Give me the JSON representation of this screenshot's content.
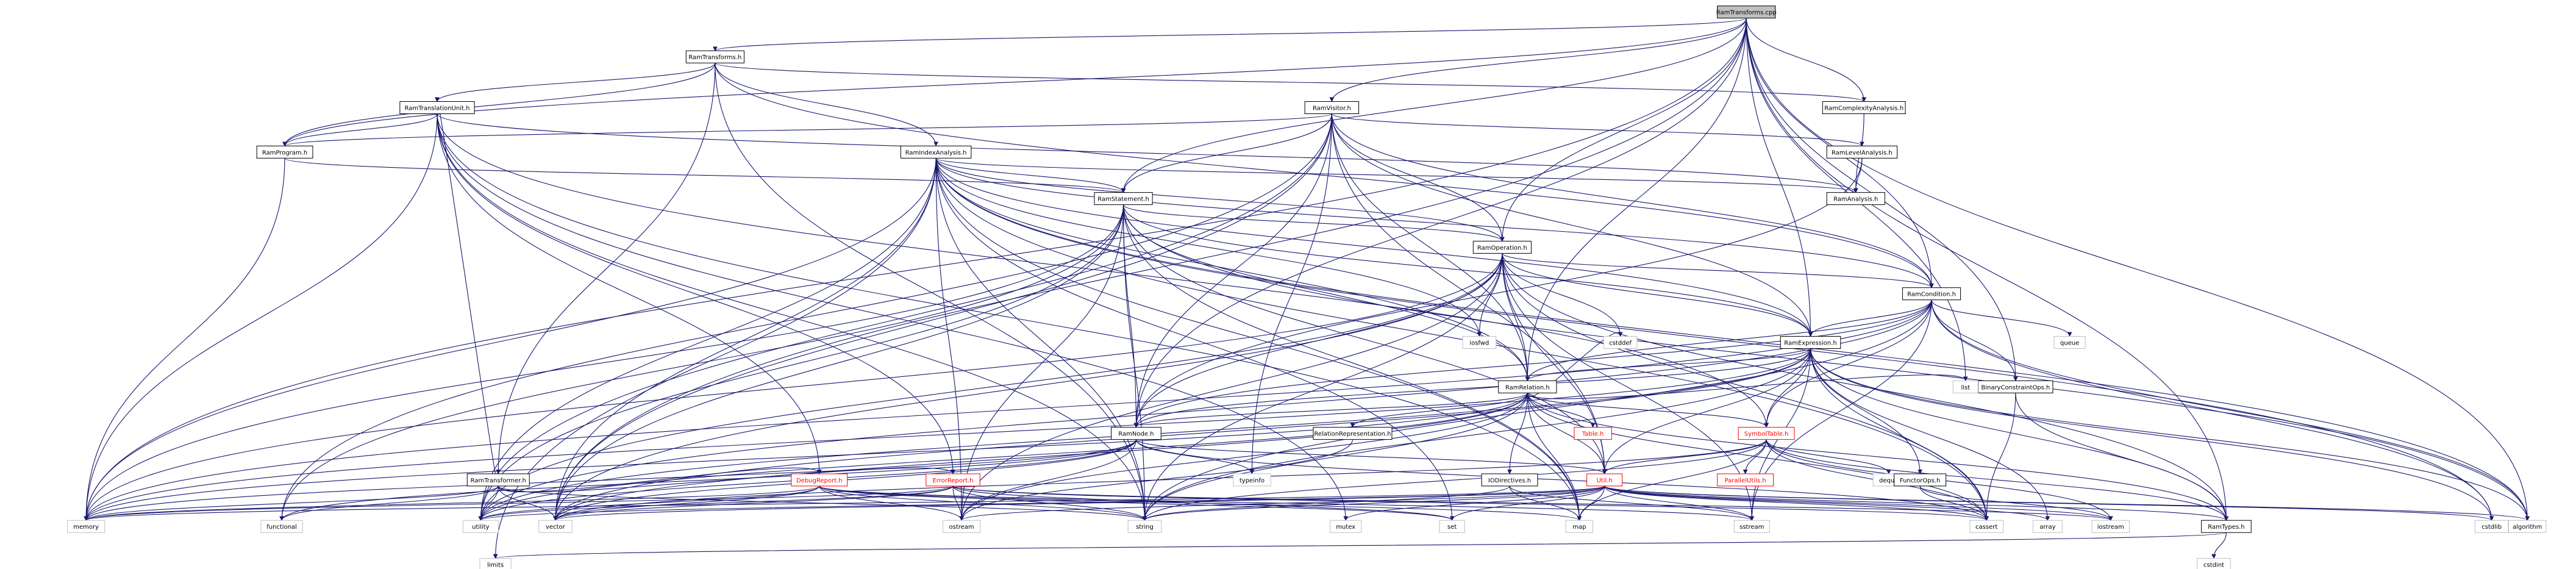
{
  "root": "RamTransforms.cpp",
  "nodes": [
    {
      "id": "RamTransforms.cpp",
      "label": "RamTransforms.cpp",
      "kind": "root"
    },
    {
      "id": "RamTransforms.h",
      "label": "RamTransforms.h",
      "kind": "file"
    },
    {
      "id": "RamVisitor.h",
      "label": "RamVisitor.h",
      "kind": "file"
    },
    {
      "id": "RamComplexityAnalysis.h",
      "label": "RamComplexityAnalysis.h",
      "kind": "file"
    },
    {
      "id": "RamTranslationUnit.h",
      "label": "RamTranslationUnit.h",
      "kind": "file"
    },
    {
      "id": "RamIndexAnalysis.h",
      "label": "RamIndexAnalysis.h",
      "kind": "file"
    },
    {
      "id": "RamLevelAnalysis.h",
      "label": "RamLevelAnalysis.h",
      "kind": "file"
    },
    {
      "id": "RamProgram.h",
      "label": "RamProgram.h",
      "kind": "file"
    },
    {
      "id": "RamStatement.h",
      "label": "RamStatement.h",
      "kind": "file"
    },
    {
      "id": "RamAnalysis.h",
      "label": "RamAnalysis.h",
      "kind": "file"
    },
    {
      "id": "RamOperation.h",
      "label": "RamOperation.h",
      "kind": "file"
    },
    {
      "id": "RamCondition.h",
      "label": "RamCondition.h",
      "kind": "file"
    },
    {
      "id": "RamExpression.h",
      "label": "RamExpression.h",
      "kind": "file"
    },
    {
      "id": "iosfwd",
      "label": "iosfwd",
      "kind": "system"
    },
    {
      "id": "cstddef",
      "label": "cstddef",
      "kind": "system"
    },
    {
      "id": "queue",
      "label": "queue",
      "kind": "system"
    },
    {
      "id": "BinaryConstraintOps.h",
      "label": "BinaryConstraintOps.h",
      "kind": "file"
    },
    {
      "id": "RamRelation.h",
      "label": "RamRelation.h",
      "kind": "file"
    },
    {
      "id": "list",
      "label": "list",
      "kind": "system"
    },
    {
      "id": "RamNode.h",
      "label": "RamNode.h",
      "kind": "file"
    },
    {
      "id": "RelationRepresentation.h",
      "label": "RelationRepresentation.h",
      "kind": "file"
    },
    {
      "id": "Table.h",
      "label": "Table.h",
      "kind": "truncated"
    },
    {
      "id": "SymbolTable.h",
      "label": "SymbolTable.h",
      "kind": "truncated"
    },
    {
      "id": "ParallelUtils.h",
      "label": "ParallelUtils.h",
      "kind": "truncated"
    },
    {
      "id": "deque",
      "label": "deque",
      "kind": "system"
    },
    {
      "id": "FunctorOps.h",
      "label": "FunctorOps.h",
      "kind": "file"
    },
    {
      "id": "RamTransformer.h",
      "label": "RamTransformer.h",
      "kind": "file"
    },
    {
      "id": "DebugReport.h",
      "label": "DebugReport.h",
      "kind": "truncated"
    },
    {
      "id": "ErrorReport.h",
      "label": "ErrorReport.h",
      "kind": "truncated"
    },
    {
      "id": "IODirectives.h",
      "label": "IODirectives.h",
      "kind": "file"
    },
    {
      "id": "typeinfo",
      "label": "typeinfo",
      "kind": "system"
    },
    {
      "id": "Util.h",
      "label": "Util.h",
      "kind": "truncated"
    },
    {
      "id": "RamTypes.h",
      "label": "RamTypes.h",
      "kind": "file"
    },
    {
      "id": "memory",
      "label": "memory",
      "kind": "system"
    },
    {
      "id": "functional",
      "label": "functional",
      "kind": "system"
    },
    {
      "id": "utility",
      "label": "utility",
      "kind": "system"
    },
    {
      "id": "vector",
      "label": "vector",
      "kind": "system"
    },
    {
      "id": "ostream",
      "label": "ostream",
      "kind": "system"
    },
    {
      "id": "string",
      "label": "string",
      "kind": "system"
    },
    {
      "id": "set",
      "label": "set",
      "kind": "system"
    },
    {
      "id": "mutex",
      "label": "mutex",
      "kind": "system"
    },
    {
      "id": "map",
      "label": "map",
      "kind": "system"
    },
    {
      "id": "sstream",
      "label": "sstream",
      "kind": "system"
    },
    {
      "id": "cassert",
      "label": "cassert",
      "kind": "system"
    },
    {
      "id": "array",
      "label": "array",
      "kind": "system"
    },
    {
      "id": "iostream",
      "label": "iostream",
      "kind": "system"
    },
    {
      "id": "cstdlib",
      "label": "cstdlib",
      "kind": "system"
    },
    {
      "id": "algorithm",
      "label": "algorithm",
      "kind": "system"
    },
    {
      "id": "limits",
      "label": "limits",
      "kind": "system"
    },
    {
      "id": "cstdint",
      "label": "cstdint",
      "kind": "system"
    }
  ],
  "edges": [
    [
      "RamTransforms.cpp",
      "RamTransforms.h"
    ],
    [
      "RamTransforms.cpp",
      "RamVisitor.h"
    ],
    [
      "RamTransforms.cpp",
      "RamComplexityAnalysis.h"
    ],
    [
      "RamTransforms.cpp",
      "RamProgram.h"
    ],
    [
      "RamTransforms.cpp",
      "RamStatement.h"
    ],
    [
      "RamTransforms.cpp",
      "RamOperation.h"
    ],
    [
      "RamTransforms.cpp",
      "RamCondition.h"
    ],
    [
      "RamTransforms.cpp",
      "RamExpression.h"
    ],
    [
      "RamTransforms.cpp",
      "RamRelation.h"
    ],
    [
      "RamTransforms.cpp",
      "RamNode.h"
    ],
    [
      "RamTransforms.cpp",
      "BinaryConstraintOps.h"
    ],
    [
      "RamTransforms.cpp",
      "list"
    ],
    [
      "RamTransforms.cpp",
      "RamTypes.h"
    ],
    [
      "RamTransforms.cpp",
      "algorithm"
    ],
    [
      "RamTransforms.cpp",
      "memory"
    ],
    [
      "RamTransforms.cpp",
      "vector"
    ],
    [
      "RamTransforms.h",
      "RamTranslationUnit.h"
    ],
    [
      "RamTransforms.h",
      "RamIndexAnalysis.h"
    ],
    [
      "RamTransforms.h",
      "RamComplexityAnalysis.h"
    ],
    [
      "RamTransforms.h",
      "RamTransformer.h"
    ],
    [
      "RamTransforms.h",
      "RamCondition.h"
    ],
    [
      "RamTransforms.h",
      "RamProgram.h"
    ],
    [
      "RamTransforms.h",
      "string"
    ],
    [
      "RamTranslationUnit.h",
      "RamProgram.h"
    ],
    [
      "RamTranslationUnit.h",
      "RamAnalysis.h"
    ],
    [
      "RamTranslationUnit.h",
      "DebugReport.h"
    ],
    [
      "RamTranslationUnit.h",
      "ErrorReport.h"
    ],
    [
      "RamTranslationUnit.h",
      "SymbolTable.h"
    ],
    [
      "RamTranslationUnit.h",
      "map"
    ],
    [
      "RamTranslationUnit.h",
      "memory"
    ],
    [
      "RamTranslationUnit.h",
      "string"
    ],
    [
      "RamTranslationUnit.h",
      "mutex"
    ],
    [
      "RamVisitor.h",
      "RamProgram.h"
    ],
    [
      "RamVisitor.h",
      "RamStatement.h"
    ],
    [
      "RamVisitor.h",
      "RamOperation.h"
    ],
    [
      "RamVisitor.h",
      "RamCondition.h"
    ],
    [
      "RamVisitor.h",
      "RamExpression.h"
    ],
    [
      "RamVisitor.h",
      "RamRelation.h"
    ],
    [
      "RamVisitor.h",
      "RamNode.h"
    ],
    [
      "RamVisitor.h",
      "RamLevelAnalysis.h"
    ],
    [
      "RamVisitor.h",
      "functional"
    ],
    [
      "RamVisitor.h",
      "typeinfo"
    ],
    [
      "RamVisitor.h",
      "utility"
    ],
    [
      "RamVisitor.h",
      "vector"
    ],
    [
      "RamVisitor.h",
      "Util.h"
    ],
    [
      "RamComplexityAnalysis.h",
      "RamAnalysis.h"
    ],
    [
      "RamLevelAnalysis.h",
      "RamAnalysis.h"
    ],
    [
      "RamLevelAnalysis.h",
      "RamNode.h"
    ],
    [
      "RamIndexAnalysis.h",
      "RamStatement.h"
    ],
    [
      "RamIndexAnalysis.h",
      "RamOperation.h"
    ],
    [
      "RamIndexAnalysis.h",
      "RamExpression.h"
    ],
    [
      "RamIndexAnalysis.h",
      "RamCondition.h"
    ],
    [
      "RamIndexAnalysis.h",
      "RamRelation.h"
    ],
    [
      "RamIndexAnalysis.h",
      "RamAnalysis.h"
    ],
    [
      "RamIndexAnalysis.h",
      "iosfwd"
    ],
    [
      "RamIndexAnalysis.h",
      "map"
    ],
    [
      "RamIndexAnalysis.h",
      "set"
    ],
    [
      "RamIndexAnalysis.h",
      "vector"
    ],
    [
      "RamIndexAnalysis.h",
      "string"
    ],
    [
      "RamIndexAnalysis.h",
      "cassert"
    ],
    [
      "RamIndexAnalysis.h",
      "limits"
    ],
    [
      "RamIndexAnalysis.h",
      "algorithm"
    ],
    [
      "RamIndexAnalysis.h",
      "memory"
    ],
    [
      "RamIndexAnalysis.h",
      "ostream"
    ],
    [
      "RamIndexAnalysis.h",
      "utility"
    ],
    [
      "RamIndexAnalysis.h",
      "cstdlib"
    ],
    [
      "RamProgram.h",
      "RamStatement.h"
    ],
    [
      "RamProgram.h",
      "memory"
    ],
    [
      "RamStatement.h",
      "RamOperation.h"
    ],
    [
      "RamStatement.h",
      "RamRelation.h"
    ],
    [
      "RamStatement.h",
      "RamNode.h"
    ],
    [
      "RamStatement.h",
      "RamExpression.h"
    ],
    [
      "RamStatement.h",
      "Util.h"
    ],
    [
      "RamStatement.h",
      "memory"
    ],
    [
      "RamStatement.h",
      "ostream"
    ],
    [
      "RamStatement.h",
      "string"
    ],
    [
      "RamStatement.h",
      "vector"
    ],
    [
      "RamStatement.h",
      "utility"
    ],
    [
      "RamStatement.h",
      "functional"
    ],
    [
      "RamStatement.h",
      "algorithm"
    ],
    [
      "RamStatement.h",
      "map"
    ],
    [
      "RamOperation.h",
      "RamCondition.h"
    ],
    [
      "RamOperation.h",
      "RamExpression.h"
    ],
    [
      "RamOperation.h",
      "RamRelation.h"
    ],
    [
      "RamOperation.h",
      "RamNode.h"
    ],
    [
      "RamOperation.h",
      "RamTypes.h"
    ],
    [
      "RamOperation.h",
      "Util.h"
    ],
    [
      "RamOperation.h",
      "iosfwd"
    ],
    [
      "RamOperation.h",
      "cstddef"
    ],
    [
      "RamOperation.h",
      "string"
    ],
    [
      "RamOperation.h",
      "vector"
    ],
    [
      "RamOperation.h",
      "cassert"
    ],
    [
      "RamOperation.h",
      "utility"
    ],
    [
      "RamOperation.h",
      "memory"
    ],
    [
      "RamOperation.h",
      "ostream"
    ],
    [
      "RamOperation.h",
      "sstream"
    ],
    [
      "RamCondition.h",
      "RamExpression.h"
    ],
    [
      "RamCondition.h",
      "RamRelation.h"
    ],
    [
      "RamCondition.h",
      "RamNode.h"
    ],
    [
      "RamCondition.h",
      "SymbolTable.h"
    ],
    [
      "RamCondition.h",
      "BinaryConstraintOps.h"
    ],
    [
      "RamCondition.h",
      "queue"
    ],
    [
      "RamCondition.h",
      "cstdlib"
    ],
    [
      "RamCondition.h",
      "algorithm"
    ],
    [
      "RamCondition.h",
      "memory"
    ],
    [
      "RamCondition.h",
      "sstream"
    ],
    [
      "RamCondition.h",
      "string"
    ],
    [
      "RamCondition.h",
      "utility"
    ],
    [
      "RamExpression.h",
      "RamRelation.h"
    ],
    [
      "RamExpression.h",
      "RamNode.h"
    ],
    [
      "RamExpression.h",
      "FunctorOps.h"
    ],
    [
      "RamExpression.h",
      "SymbolTable.h"
    ],
    [
      "RamExpression.h",
      "RamTypes.h"
    ],
    [
      "RamExpression.h",
      "Util.h"
    ],
    [
      "RamExpression.h",
      "array"
    ],
    [
      "RamExpression.h",
      "cassert"
    ],
    [
      "RamExpression.h",
      "cstdlib"
    ],
    [
      "RamExpression.h",
      "memory"
    ],
    [
      "RamExpression.h",
      "sstream"
    ],
    [
      "RamExpression.h",
      "string"
    ],
    [
      "RamExpression.h",
      "utility"
    ],
    [
      "RamExpression.h",
      "vector"
    ],
    [
      "RamExpression.h",
      "algorithm"
    ],
    [
      "BinaryConstraintOps.h",
      "RamTypes.h"
    ],
    [
      "BinaryConstraintOps.h",
      "cassert"
    ],
    [
      "RamRelation.h",
      "RamNode.h"
    ],
    [
      "RamRelation.h",
      "RelationRepresentation.h"
    ],
    [
      "RamRelation.h",
      "Table.h"
    ],
    [
      "RamRelation.h",
      "SymbolTable.h"
    ],
    [
      "RamRelation.h",
      "IODirectives.h"
    ],
    [
      "RamRelation.h",
      "RamTypes.h"
    ],
    [
      "RamRelation.h",
      "Util.h"
    ],
    [
      "RamRelation.h",
      "list"
    ],
    [
      "RamRelation.h",
      "string"
    ],
    [
      "RamRelation.h",
      "cassert"
    ],
    [
      "RamRelation.h",
      "map"
    ],
    [
      "RamRelation.h",
      "memory"
    ],
    [
      "RamRelation.h",
      "utility"
    ],
    [
      "RamRelation.h",
      "vector"
    ],
    [
      "RamRelation.h",
      "ostream"
    ],
    [
      "RamRelation.h",
      "cstddef"
    ],
    [
      "RamNode.h",
      "Util.h"
    ],
    [
      "RamNode.h",
      "typeinfo"
    ],
    [
      "RamNode.h",
      "functional"
    ],
    [
      "RamNode.h",
      "memory"
    ],
    [
      "RamNode.h",
      "utility"
    ],
    [
      "RamNode.h",
      "vector"
    ],
    [
      "RamNode.h",
      "cassert"
    ],
    [
      "RamNode.h",
      "ostream"
    ],
    [
      "RelationRepresentation.h",
      "ostream"
    ],
    [
      "SymbolTable.h",
      "ParallelUtils.h"
    ],
    [
      "SymbolTable.h",
      "RamTypes.h"
    ],
    [
      "SymbolTable.h",
      "Util.h"
    ],
    [
      "SymbolTable.h",
      "deque"
    ],
    [
      "SymbolTable.h",
      "cassert"
    ],
    [
      "SymbolTable.h",
      "iostream"
    ],
    [
      "SymbolTable.h",
      "string"
    ],
    [
      "SymbolTable.h",
      "map"
    ],
    [
      "SymbolTable.h",
      "vector"
    ],
    [
      "FunctorOps.h",
      "cassert"
    ],
    [
      "FunctorOps.h",
      "iostream"
    ],
    [
      "RamTransformer.h",
      "RamTranslationUnit.h"
    ],
    [
      "RamTransformer.h",
      "DebugReport.h"
    ],
    [
      "RamTransformer.h",
      "ErrorReport.h"
    ],
    [
      "RamTransformer.h",
      "memory"
    ],
    [
      "RamTransformer.h",
      "vector"
    ],
    [
      "RamTransformer.h",
      "string"
    ],
    [
      "RamTransformer.h",
      "utility"
    ],
    [
      "RamTransformer.h",
      "functional"
    ],
    [
      "DebugReport.h",
      "sstream"
    ],
    [
      "DebugReport.h",
      "set"
    ],
    [
      "DebugReport.h",
      "string"
    ],
    [
      "DebugReport.h",
      "vector"
    ],
    [
      "DebugReport.h",
      "ostream"
    ],
    [
      "DebugReport.h",
      "memory"
    ],
    [
      "DebugReport.h",
      "utility"
    ],
    [
      "DebugReport.h",
      "map"
    ],
    [
      "ErrorReport.h",
      "set"
    ],
    [
      "ErrorReport.h",
      "string"
    ],
    [
      "ErrorReport.h",
      "vector"
    ],
    [
      "ErrorReport.h",
      "ostream"
    ],
    [
      "ErrorReport.h",
      "iostream"
    ],
    [
      "ErrorReport.h",
      "cassert"
    ],
    [
      "ErrorReport.h",
      "utility"
    ],
    [
      "ErrorReport.h",
      "memory"
    ],
    [
      "IODirectives.h",
      "map"
    ],
    [
      "IODirectives.h",
      "sstream"
    ],
    [
      "IODirectives.h",
      "string"
    ],
    [
      "Util.h",
      "RamTypes.h"
    ],
    [
      "Util.h",
      "algorithm"
    ],
    [
      "Util.h",
      "array"
    ],
    [
      "Util.h",
      "cassert"
    ],
    [
      "Util.h",
      "cstdlib"
    ],
    [
      "Util.h",
      "iostream"
    ],
    [
      "Util.h",
      "map"
    ],
    [
      "Util.h",
      "memory"
    ],
    [
      "Util.h",
      "set"
    ],
    [
      "Util.h",
      "sstream"
    ],
    [
      "Util.h",
      "string"
    ],
    [
      "Util.h",
      "utility"
    ],
    [
      "Util.h",
      "vector"
    ],
    [
      "Util.h",
      "ostream"
    ],
    [
      "Util.h",
      "mutex"
    ],
    [
      "RamTypes.h",
      "limits"
    ],
    [
      "RamTypes.h",
      "cstdint"
    ]
  ]
}
